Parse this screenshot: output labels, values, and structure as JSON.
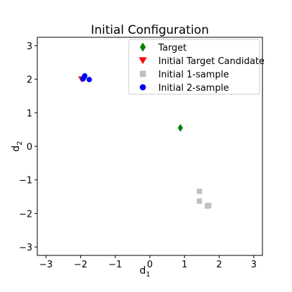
{
  "chart_data": {
    "type": "scatter",
    "title": "Initial Configuration",
    "xlabel": "d",
    "xlabel_sub": "1",
    "ylabel": "d",
    "ylabel_sub": "2",
    "xlim": [
      -3.25,
      3.25
    ],
    "ylim": [
      -3.25,
      3.25
    ],
    "xticks": [
      -3,
      -2,
      -1,
      0,
      1,
      2,
      3
    ],
    "yticks": [
      -3,
      -2,
      -1,
      0,
      1,
      2,
      3
    ],
    "tick_labels_x": [
      "−3",
      "−2",
      "−1",
      "0",
      "1",
      "2",
      "3"
    ],
    "tick_labels_y": [
      "−3",
      "−2",
      "−1",
      "0",
      "1",
      "2",
      "3"
    ],
    "grid": false,
    "legend_position": "top-right",
    "series": [
      {
        "name": "Target",
        "marker": "diamond",
        "color": "#008000",
        "points": [
          [
            0.88,
            0.55
          ]
        ]
      },
      {
        "name": "Initial Target Candidate",
        "marker": "triangle-down",
        "color": "#ff0000",
        "points": [
          [
            -1.97,
            2.0
          ]
        ]
      },
      {
        "name": "Initial 1-sample",
        "marker": "square",
        "color": "#c0c0c0",
        "points": [
          [
            1.43,
            -1.34
          ],
          [
            1.43,
            -1.63
          ],
          [
            1.66,
            -1.78
          ],
          [
            1.7,
            -1.76
          ]
        ]
      },
      {
        "name": "Initial 2-sample",
        "marker": "circle",
        "color": "#0000ff",
        "points": [
          [
            -1.9,
            2.06
          ],
          [
            -1.88,
            2.1
          ],
          [
            -1.75,
            1.99
          ],
          [
            -1.93,
            2.01
          ]
        ]
      }
    ]
  }
}
